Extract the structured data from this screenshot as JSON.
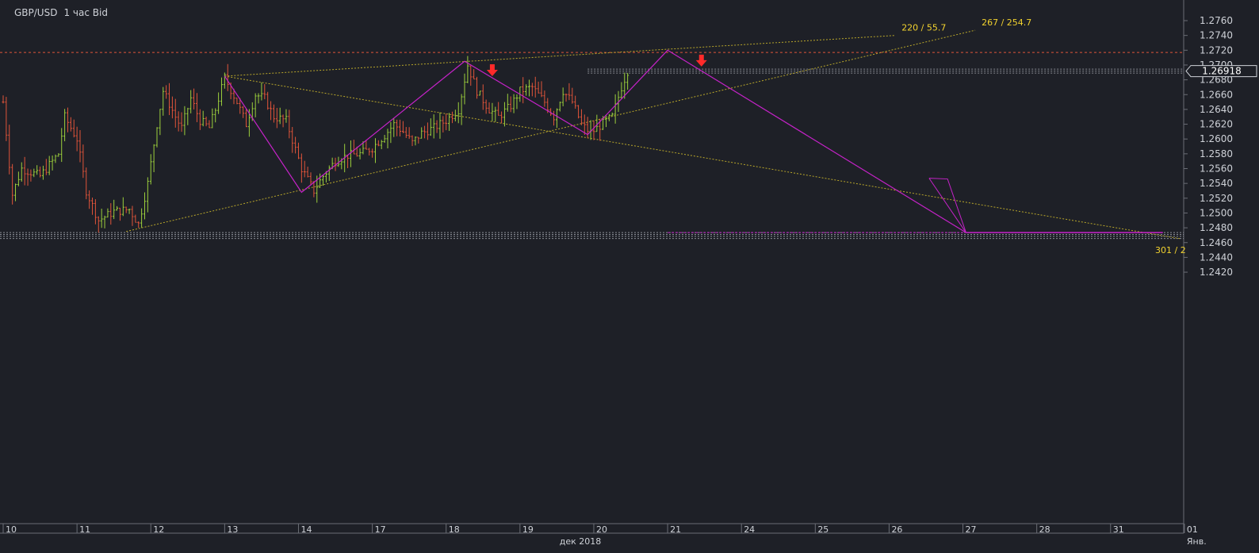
{
  "header": {
    "symbol": "GBP/USD",
    "timeframe": "1 час Bid"
  },
  "price_label": "1.26918",
  "month_label": "дек 2018",
  "colors": {
    "background": "#1e2027",
    "bull": "#9ccf3c",
    "bear": "#e0543a",
    "pattern": "#c522c8",
    "trend": "#b8a62a",
    "resistance": "#e0543a",
    "arrow": "#ff2a2a",
    "label": "#f2d22e",
    "axis_text": "#cfd2d8"
  },
  "chart_data": {
    "type": "ohlc",
    "yaxis": {
      "min": 1.2405,
      "max": 1.2775,
      "ticks": [
        "1.2420",
        "1.2440",
        "1.2460",
        "1.2480",
        "1.2500",
        "1.2520",
        "1.2540",
        "1.2560",
        "1.2580",
        "1.2600",
        "1.2620",
        "1.2640",
        "1.2660",
        "1.2680",
        "1.2700",
        "1.2720",
        "1.2740",
        "1.2760"
      ]
    },
    "xaxis": {
      "labels": [
        {
          "text": "10",
          "bar": 0
        },
        {
          "text": "11",
          "bar": 24
        },
        {
          "text": "12",
          "bar": 48
        },
        {
          "text": "13",
          "bar": 72
        },
        {
          "text": "14",
          "bar": 96
        },
        {
          "text": "17",
          "bar": 120
        },
        {
          "text": "18",
          "bar": 144
        },
        {
          "text": "19",
          "bar": 168
        },
        {
          "text": "20",
          "bar": 192
        },
        {
          "text": "21",
          "bar": 216
        },
        {
          "text": "24",
          "bar": 240
        },
        {
          "text": "25",
          "bar": 264
        },
        {
          "text": "26",
          "bar": 288
        },
        {
          "text": "27",
          "bar": 312
        },
        {
          "text": "28",
          "bar": 336
        },
        {
          "text": "31",
          "bar": 360
        },
        {
          "text": "01",
          "bar": 384
        },
        {
          "text": "Янв.",
          "bar": 384
        }
      ]
    },
    "last_price": 1.26918,
    "resistance_level": 1.2717,
    "support_levels": [
      1.24735,
      1.2471,
      1.24685,
      1.24655
    ],
    "candle_anchors": [
      [
        0,
        1.265
      ],
      [
        3,
        1.2525
      ],
      [
        6,
        1.256
      ],
      [
        12,
        1.255
      ],
      [
        18,
        1.258
      ],
      [
        20,
        1.263
      ],
      [
        24,
        1.26
      ],
      [
        27,
        1.253
      ],
      [
        31,
        1.249
      ],
      [
        36,
        1.2502
      ],
      [
        41,
        1.2505
      ],
      [
        44,
        1.2485
      ],
      [
        47,
        1.254
      ],
      [
        50,
        1.262
      ],
      [
        52,
        1.2665
      ],
      [
        56,
        1.263
      ],
      [
        58,
        1.2615
      ],
      [
        61,
        1.2655
      ],
      [
        64,
        1.2625
      ],
      [
        67,
        1.2615
      ],
      [
        69,
        1.264
      ],
      [
        72,
        1.2683
      ],
      [
        76,
        1.265
      ],
      [
        79,
        1.262
      ],
      [
        82,
        1.266
      ],
      [
        85,
        1.2655
      ],
      [
        88,
        1.263
      ],
      [
        92,
        1.2625
      ],
      [
        97,
        1.256
      ],
      [
        101,
        1.253
      ],
      [
        104,
        1.255
      ],
      [
        108,
        1.257
      ],
      [
        112,
        1.2578
      ],
      [
        116,
        1.258
      ],
      [
        120,
        1.2588
      ],
      [
        124,
        1.2605
      ],
      [
        127,
        1.262
      ],
      [
        130,
        1.261
      ],
      [
        133,
        1.2595
      ],
      [
        136,
        1.2608
      ],
      [
        140,
        1.2615
      ],
      [
        144,
        1.2625
      ],
      [
        148,
        1.264
      ],
      [
        151,
        1.27
      ],
      [
        154,
        1.2665
      ],
      [
        158,
        1.264
      ],
      [
        161,
        1.263
      ],
      [
        165,
        1.2645
      ],
      [
        168,
        1.2665
      ],
      [
        172,
        1.267
      ],
      [
        176,
        1.265
      ],
      [
        179,
        1.263
      ],
      [
        182,
        1.2665
      ],
      [
        185,
        1.265
      ],
      [
        188,
        1.262
      ],
      [
        191,
        1.2608
      ],
      [
        194,
        1.2618
      ],
      [
        198,
        1.263
      ],
      [
        201,
        1.267
      ],
      [
        203,
        1.2692
      ]
    ],
    "harmonic_pattern": [
      [
        72,
        1.2685
      ],
      [
        97,
        1.2528
      ],
      [
        150,
        1.2705
      ],
      [
        190,
        1.2606
      ],
      [
        216,
        1.272
      ],
      [
        313,
        1.24735
      ]
    ],
    "pattern_extension": {
      "from_bar": 313,
      "to_bar": 377,
      "price": 1.24735
    },
    "pattern_dashed": {
      "from_bar": 216,
      "to_bar": 313,
      "price": 1.24735
    },
    "pattern_wedge": [
      [
        301,
        1.2547
      ],
      [
        307,
        1.2546
      ],
      [
        313,
        1.24735
      ]
    ],
    "trendlines": [
      {
        "label": "220 / 55.7",
        "from": [
          72,
          1.2685
        ],
        "to": [
          290,
          1.274
        ]
      },
      {
        "label": "267 / 254.7",
        "from": [
          40,
          1.2475
        ],
        "to": [
          316,
          1.2747
        ]
      },
      {
        "label": "301 / 2",
        "from": [
          72,
          1.2685
        ],
        "to": [
          383,
          1.2465
        ]
      }
    ],
    "signal_arrows": [
      {
        "bar": 159,
        "price": 1.2701
      },
      {
        "bar": 227,
        "price": 1.2714
      }
    ]
  }
}
